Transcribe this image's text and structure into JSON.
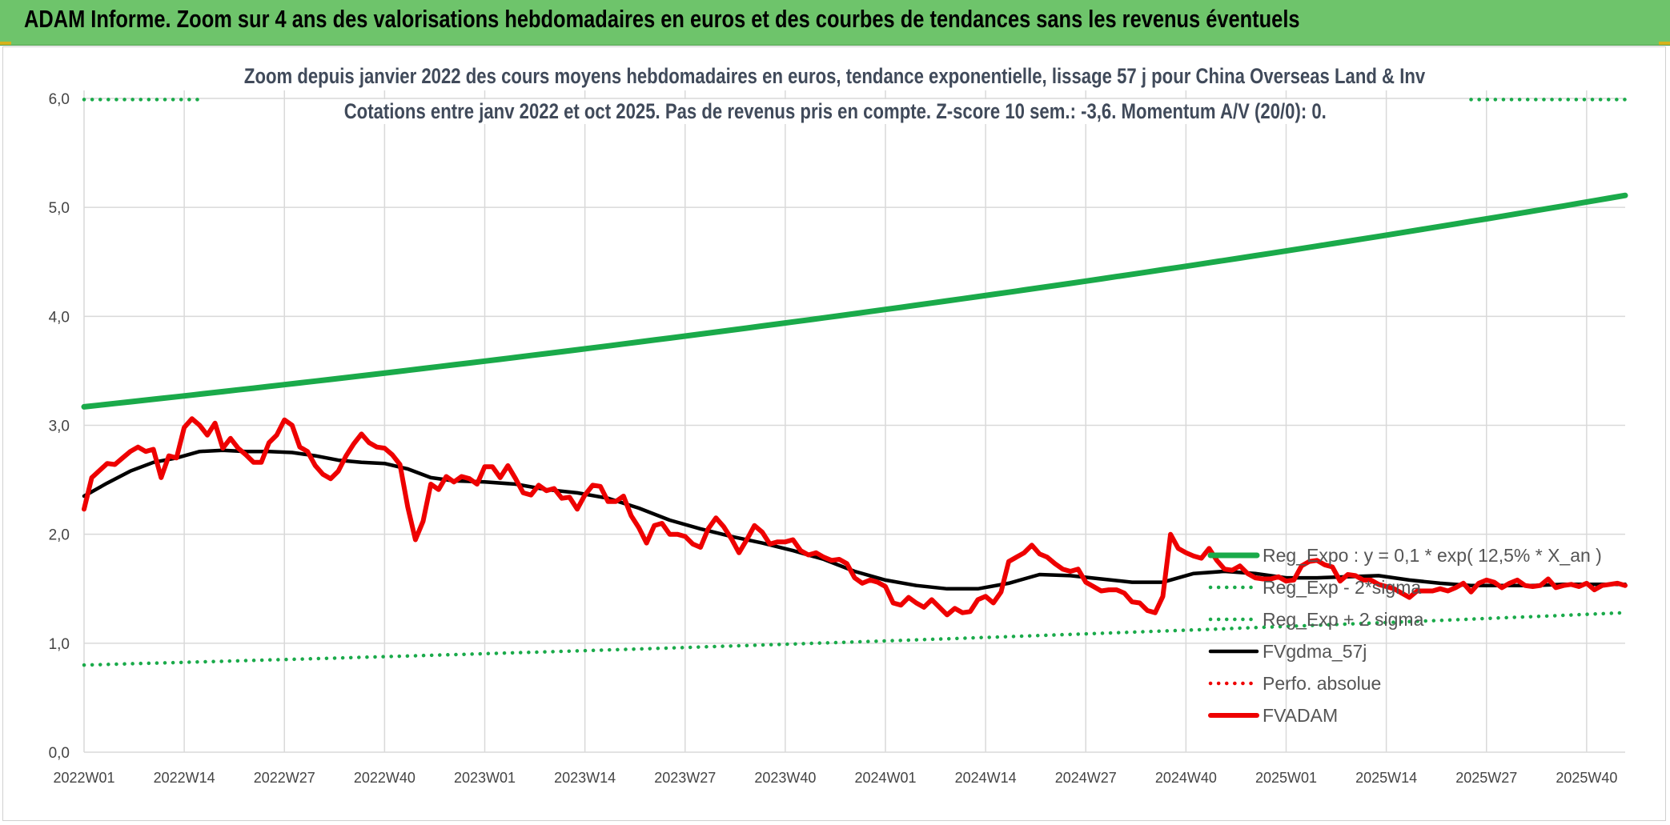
{
  "header": {
    "title": "ADAM Informe. Zoom sur 4 ans des valorisations hebdomadaires en euros et des courbes de tendances sans les revenus éventuels"
  },
  "chart_data": {
    "type": "line",
    "title": "Zoom depuis janvier 2022 des cours moyens hebdomadaires en euros, tendance exponentielle, lissage 57 j pour China Overseas Land & Inv",
    "subtitle": "Cotations entre janv 2022 et oct 2025. Pas de revenus pris en compte. Z-score 10 sem.: -3,6. Momentum A/V (20/0): 0.",
    "xlabel": "",
    "ylabel": "",
    "ylim": [
      0,
      6
    ],
    "yticks": [
      "0,0",
      "1,0",
      "2,0",
      "3,0",
      "4,0",
      "5,0",
      "6,0"
    ],
    "xtick_labels": [
      "2022W01",
      "2022W14",
      "2022W27",
      "2022W40",
      "2023W01",
      "2023W14",
      "2023W27",
      "2023W40",
      "2024W01",
      "2024W14",
      "2024W27",
      "2024W40",
      "2025W01",
      "2025W14",
      "2025W27",
      "2025W40"
    ],
    "x_range_weeks": [
      0,
      200
    ],
    "grid": "vertical-and-horizontal",
    "legend_position": "right",
    "series": [
      {
        "name": "Reg_Expo : y = 0,1 * exp( 12,5% *  X_an )",
        "color": "#1aaa4a",
        "style": "solid-thick",
        "x": [
          0,
          200
        ],
        "values": [
          3.17,
          5.11
        ],
        "interp": "exp"
      },
      {
        "name": "Reg_Exp - 2*sigma",
        "color": "#1aaa4a",
        "style": "dotted",
        "x": [
          0,
          200
        ],
        "values": [
          0.8,
          1.28
        ],
        "interp": "exp"
      },
      {
        "name": "Reg_Exp + 2 sigma",
        "color": "#1aaa4a",
        "style": "dotted",
        "x": [
          0,
          15,
          180,
          200
        ],
        "values": [
          5.99,
          5.99,
          5.99,
          5.99
        ]
      },
      {
        "name": "FVgdma_57j",
        "color": "#000000",
        "style": "solid",
        "x": [
          0,
          3,
          6,
          9,
          12,
          15,
          18,
          21,
          24,
          27,
          30,
          33,
          36,
          39,
          42,
          45,
          48,
          52,
          56,
          60,
          64,
          68,
          72,
          76,
          80,
          84,
          88,
          92,
          96,
          100,
          104,
          108,
          112,
          116,
          120,
          124,
          128,
          132,
          136,
          140,
          144,
          148,
          152,
          156,
          160,
          164,
          168,
          172,
          176,
          180,
          184,
          188,
          192,
          196,
          200
        ],
        "values": [
          2.35,
          2.47,
          2.58,
          2.66,
          2.7,
          2.76,
          2.77,
          2.76,
          2.76,
          2.75,
          2.72,
          2.68,
          2.66,
          2.65,
          2.6,
          2.52,
          2.49,
          2.48,
          2.46,
          2.41,
          2.38,
          2.33,
          2.24,
          2.13,
          2.05,
          1.98,
          1.92,
          1.85,
          1.77,
          1.66,
          1.58,
          1.53,
          1.5,
          1.5,
          1.55,
          1.63,
          1.62,
          1.59,
          1.56,
          1.56,
          1.64,
          1.66,
          1.64,
          1.6,
          1.6,
          1.61,
          1.62,
          1.58,
          1.55,
          1.53,
          1.53,
          1.53,
          1.54,
          1.54,
          1.54
        ]
      },
      {
        "name": "Perfo. absolue",
        "color": "#ee0000",
        "style": "dotted",
        "x": [],
        "values": []
      },
      {
        "name": "FVADAM",
        "color": "#ee0000",
        "style": "solid-thick",
        "x": [
          0,
          1,
          3,
          4,
          5,
          6,
          7,
          8,
          9,
          10,
          11,
          12,
          13,
          14,
          15,
          16,
          17,
          18,
          19,
          20,
          21,
          22,
          23,
          24,
          25,
          26,
          27,
          28,
          29,
          30,
          31,
          32,
          33,
          34,
          35,
          36,
          37,
          38,
          39,
          40,
          41,
          42,
          43,
          44,
          45,
          46,
          47,
          48,
          49,
          50,
          51,
          52,
          53,
          54,
          55,
          56,
          57,
          58,
          59,
          60,
          61,
          62,
          63,
          64,
          65,
          66,
          67,
          68,
          69,
          70,
          71,
          72,
          73,
          74,
          75,
          76,
          77,
          78,
          79,
          80,
          81,
          82,
          83,
          84,
          85,
          86,
          87,
          88,
          89,
          90,
          91,
          92,
          93,
          94,
          95,
          96,
          97,
          98,
          99,
          100,
          101,
          102,
          103,
          104,
          105,
          106,
          107,
          108,
          109,
          110,
          111,
          112,
          113,
          114,
          115,
          116,
          117,
          118,
          119,
          120,
          121,
          122,
          123,
          124,
          125,
          126,
          127,
          128,
          129,
          130,
          131,
          132,
          133,
          134,
          135,
          136,
          137,
          138,
          139,
          140,
          141,
          142,
          143,
          144,
          145,
          146,
          147,
          148,
          149,
          150,
          151,
          152,
          153,
          154,
          155,
          156,
          157,
          158,
          159,
          160,
          161,
          162,
          163,
          164,
          165,
          166,
          167,
          168,
          169,
          170,
          171,
          172,
          173,
          174,
          175,
          176,
          177,
          178,
          179,
          180,
          181,
          182,
          183,
          184,
          185,
          186,
          187,
          188,
          189,
          190,
          191,
          192,
          193,
          194,
          195,
          196,
          197,
          198,
          199,
          200
        ],
        "values": [
          2.23,
          2.52,
          2.65,
          2.64,
          2.7,
          2.76,
          2.8,
          2.76,
          2.78,
          2.52,
          2.72,
          2.7,
          2.98,
          3.06,
          3.0,
          2.91,
          3.02,
          2.79,
          2.88,
          2.79,
          2.73,
          2.66,
          2.66,
          2.84,
          2.91,
          3.05,
          3.0,
          2.8,
          2.76,
          2.63,
          2.55,
          2.51,
          2.58,
          2.72,
          2.83,
          2.92,
          2.84,
          2.8,
          2.79,
          2.73,
          2.64,
          2.25,
          1.95,
          2.12,
          2.46,
          2.41,
          2.53,
          2.48,
          2.53,
          2.51,
          2.46,
          2.62,
          2.62,
          2.52,
          2.63,
          2.51,
          2.38,
          2.36,
          2.45,
          2.4,
          2.42,
          2.33,
          2.34,
          2.23,
          2.36,
          2.45,
          2.44,
          2.3,
          2.3,
          2.35,
          2.17,
          2.06,
          1.92,
          2.08,
          2.1,
          2.0,
          2.0,
          1.98,
          1.91,
          1.88,
          2.05,
          2.15,
          2.07,
          1.96,
          1.83,
          1.95,
          2.08,
          2.02,
          1.91,
          1.93,
          1.93,
          1.95,
          1.85,
          1.81,
          1.83,
          1.79,
          1.76,
          1.77,
          1.73,
          1.6,
          1.55,
          1.58,
          1.56,
          1.52,
          1.37,
          1.35,
          1.42,
          1.37,
          1.33,
          1.4,
          1.33,
          1.26,
          1.32,
          1.28,
          1.29,
          1.4,
          1.43,
          1.37,
          1.47,
          1.75,
          1.79,
          1.83,
          1.9,
          1.82,
          1.79,
          1.73,
          1.68,
          1.66,
          1.68,
          1.56,
          1.52,
          1.48,
          1.49,
          1.49,
          1.46,
          1.38,
          1.37,
          1.3,
          1.28,
          1.43,
          2.0,
          1.87,
          1.83,
          1.8,
          1.78,
          1.87,
          1.76,
          1.68,
          1.67,
          1.71,
          1.64,
          1.6,
          1.59,
          1.59,
          1.61,
          1.57,
          1.58,
          1.71,
          1.75,
          1.76,
          1.72,
          1.7,
          1.57,
          1.63,
          1.62,
          1.58,
          1.58,
          1.54,
          1.52,
          1.5,
          1.46,
          1.42,
          1.48,
          1.48,
          1.48,
          1.5,
          1.48,
          1.51,
          1.55,
          1.47,
          1.55,
          1.58,
          1.56,
          1.51,
          1.55,
          1.58,
          1.53,
          1.52,
          1.53,
          1.59,
          1.51,
          1.53,
          1.54,
          1.52,
          1.55,
          1.49,
          1.53,
          1.54,
          1.55,
          1.53
        ]
      }
    ]
  }
}
